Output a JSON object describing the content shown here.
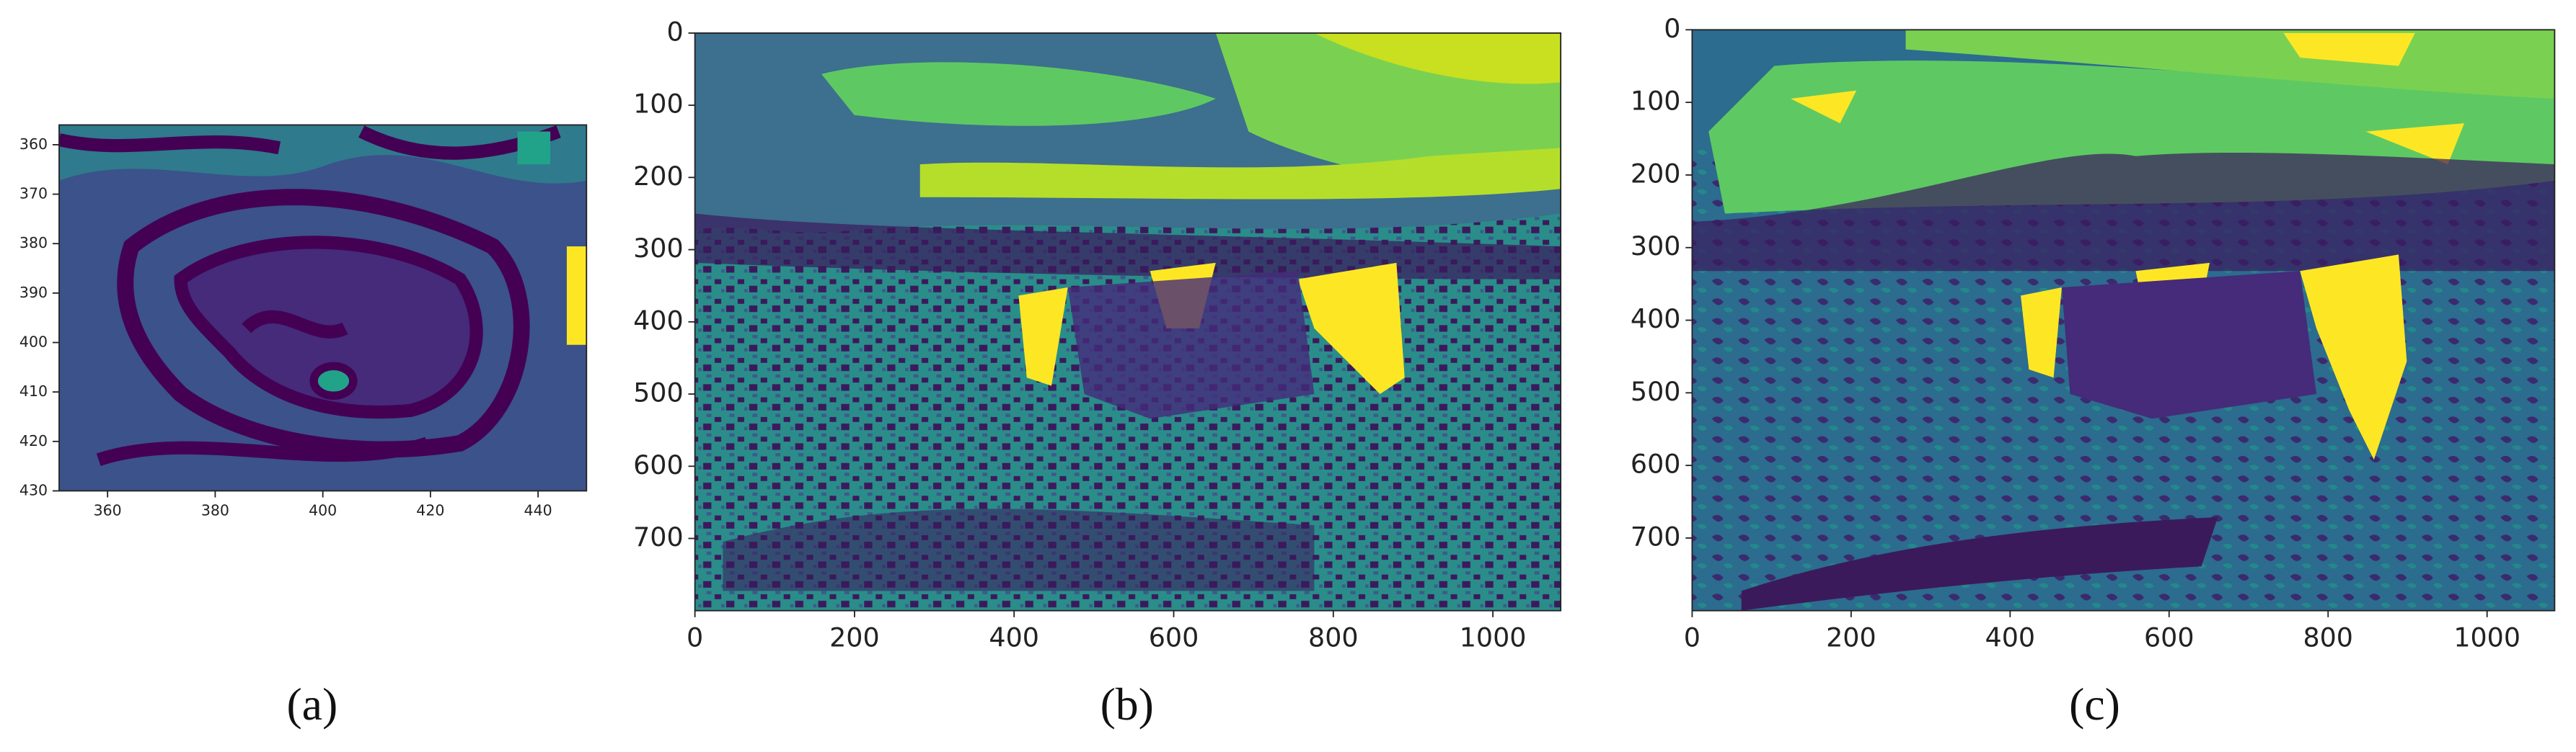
{
  "figure": {
    "panels": [
      {
        "caption": "(a)",
        "xlim": [
          351,
          449
        ],
        "ylim": [
          356,
          430
        ],
        "xticks": [
          360,
          380,
          400,
          420,
          440
        ],
        "yticks": [
          360,
          370,
          380,
          390,
          400,
          410,
          420,
          430
        ]
      },
      {
        "caption": "(b)",
        "xlim": [
          0,
          1085
        ],
        "ylim": [
          0,
          800
        ],
        "xticks": [
          0,
          200,
          400,
          600,
          800,
          1000
        ],
        "yticks": [
          0,
          100,
          200,
          300,
          400,
          500,
          600,
          700
        ]
      },
      {
        "caption": "(c)",
        "xlim": [
          0,
          1085
        ],
        "ylim": [
          0,
          800
        ],
        "xticks": [
          0,
          200,
          400,
          600,
          800,
          1000
        ],
        "yticks": [
          0,
          100,
          200,
          300,
          400,
          500,
          600,
          700
        ]
      }
    ]
  }
}
